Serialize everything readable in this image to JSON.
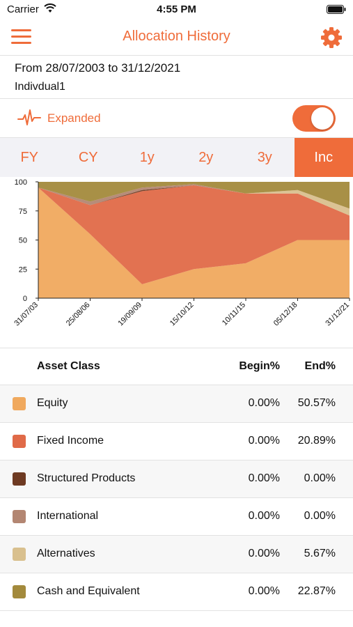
{
  "status_bar": {
    "carrier": "Carrier",
    "time": "4:55 PM"
  },
  "nav": {
    "title": "Allocation History",
    "menu_icon": "hamburger-menu-icon",
    "settings_icon": "gear-icon"
  },
  "info": {
    "date_range": "From 28/07/2003 to 31/12/2021",
    "account": "Indivdual1"
  },
  "view_mode": {
    "label": "Expanded",
    "toggle_on": true,
    "icon": "pulse-icon"
  },
  "period_tabs": [
    {
      "label": "FY",
      "active": false
    },
    {
      "label": "CY",
      "active": false
    },
    {
      "label": "1y",
      "active": false
    },
    {
      "label": "2y",
      "active": false
    },
    {
      "label": "3y",
      "active": false
    },
    {
      "label": "Inc",
      "active": true
    }
  ],
  "colors": {
    "accent": "#ef6c3a",
    "equity": "#f0a95e",
    "fixed_income": "#e06a48",
    "structured_products": "#6e3a22",
    "international": "#b38672",
    "alternatives": "#d9c08e",
    "cash": "#a38a3c"
  },
  "chart_data": {
    "type": "area",
    "stacked": true,
    "ylim": [
      0,
      100
    ],
    "yticks": [
      0,
      25,
      50,
      75,
      100
    ],
    "x": [
      "31/07/03",
      "25/08/06",
      "19/09/09",
      "15/10/12",
      "10/11/15",
      "05/12/18",
      "31/12/21"
    ],
    "xlabel": "",
    "ylabel": "",
    "series": [
      {
        "name": "Equity",
        "color": "#f0a95e",
        "values": [
          95,
          55,
          12,
          25,
          30,
          50,
          50
        ]
      },
      {
        "name": "Fixed Income",
        "color": "#e06a48",
        "values": [
          0,
          25,
          80,
          72,
          60,
          40,
          21
        ]
      },
      {
        "name": "Structured Products",
        "color": "#6e3a22",
        "values": [
          0,
          0,
          1,
          0,
          0,
          0,
          0
        ]
      },
      {
        "name": "International",
        "color": "#b38672",
        "values": [
          0,
          3,
          2,
          1,
          0,
          0,
          0
        ]
      },
      {
        "name": "Alternatives",
        "color": "#d9c08e",
        "values": [
          0,
          0,
          0,
          0,
          0,
          3,
          6
        ]
      },
      {
        "name": "Cash and Equivalent",
        "color": "#a38a3c",
        "values": [
          5,
          17,
          5,
          2,
          10,
          7,
          23
        ]
      }
    ]
  },
  "table": {
    "headers": {
      "asset": "Asset Class",
      "begin": "Begin%",
      "end": "End%"
    },
    "rows": [
      {
        "name": "Equity",
        "begin": "0.00%",
        "end": "50.57%",
        "color": "#f0a95e"
      },
      {
        "name": "Fixed Income",
        "begin": "0.00%",
        "end": "20.89%",
        "color": "#e06a48"
      },
      {
        "name": "Structured Products",
        "begin": "0.00%",
        "end": "0.00%",
        "color": "#6e3a22"
      },
      {
        "name": "International",
        "begin": "0.00%",
        "end": "0.00%",
        "color": "#b38672"
      },
      {
        "name": "Alternatives",
        "begin": "0.00%",
        "end": "5.67%",
        "color": "#d9c08e"
      },
      {
        "name": "Cash and Equivalent",
        "begin": "0.00%",
        "end": "22.87%",
        "color": "#a38a3c"
      }
    ]
  }
}
